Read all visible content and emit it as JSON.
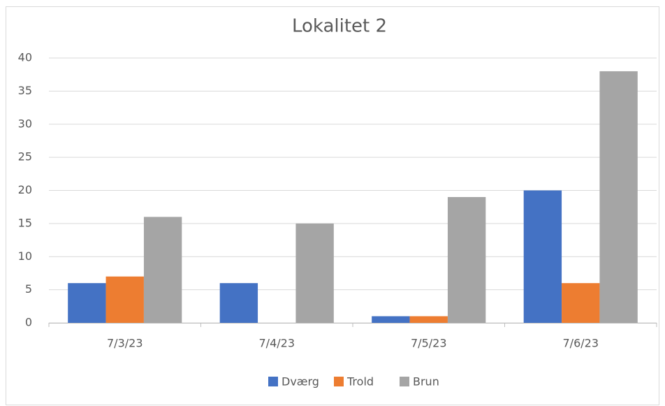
{
  "chart_data": {
    "type": "bar",
    "title": "Lokalitet 2",
    "categories": [
      "7/3/23",
      "7/4/23",
      "7/5/23",
      "7/6/23"
    ],
    "series": [
      {
        "name": "Dværg",
        "color": "#4472c4",
        "values": [
          6,
          6,
          1,
          20
        ]
      },
      {
        "name": "Trold",
        "color": "#ed7d31",
        "values": [
          7,
          0,
          1,
          6
        ]
      },
      {
        "name": "Brun",
        "color": "#a5a5a5",
        "values": [
          16,
          15,
          19,
          38
        ]
      }
    ],
    "ylim": [
      0,
      40
    ],
    "yticks": [
      0,
      5,
      10,
      15,
      20,
      25,
      30,
      35,
      40
    ],
    "grid": true,
    "legend": "bottom"
  }
}
